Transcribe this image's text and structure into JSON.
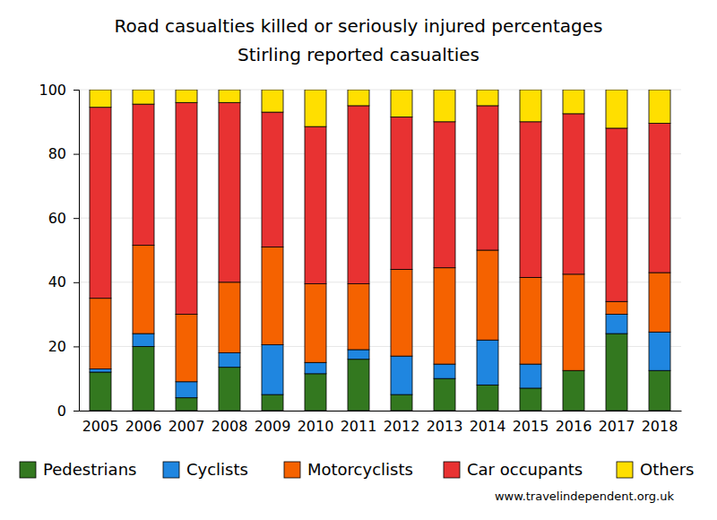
{
  "chart_data": {
    "type": "bar",
    "title": "Road casualties killed or seriously injured percentages",
    "subtitle": "Stirling reported casualties",
    "annotations": [
      "www.travelindependent.org.uk"
    ],
    "stacked": true,
    "grid": true,
    "legend": "bottom",
    "categories": [
      "2005",
      "2006",
      "2007",
      "2008",
      "2009",
      "2010",
      "2011",
      "2012",
      "2013",
      "2014",
      "2015",
      "2016",
      "2017",
      "2018"
    ],
    "ylim": [
      0,
      100
    ],
    "yticks": [
      0,
      20,
      40,
      60,
      80,
      100
    ],
    "series": [
      {
        "name": "Pedestrians",
        "color": "#33781f",
        "values": [
          12,
          20,
          4,
          13.5,
          5,
          11.5,
          16,
          5,
          10,
          8,
          7,
          12.5,
          24,
          12.5
        ]
      },
      {
        "name": "Cyclists",
        "color": "#1f86e0",
        "values": [
          1,
          4,
          5,
          4.5,
          15.5,
          3.5,
          3,
          12,
          4.5,
          14,
          7.5,
          0,
          6,
          12
        ]
      },
      {
        "name": "Motorcyclists",
        "color": "#f56200",
        "values": [
          22,
          27.5,
          21,
          22,
          30.5,
          24.5,
          20.5,
          27,
          30,
          28,
          27,
          30,
          4,
          18.5
        ]
      },
      {
        "name": "Car occupants",
        "color": "#e83232",
        "values": [
          59.5,
          44,
          66,
          56,
          42,
          49,
          55.5,
          47.5,
          45.5,
          45,
          48.5,
          50,
          54,
          46.5
        ]
      },
      {
        "name": "Others",
        "color": "#ffdf00",
        "values": [
          5.5,
          4.5,
          4,
          4,
          7,
          11.5,
          5,
          8.5,
          10,
          5,
          10,
          7.5,
          12,
          10.5
        ]
      }
    ]
  }
}
